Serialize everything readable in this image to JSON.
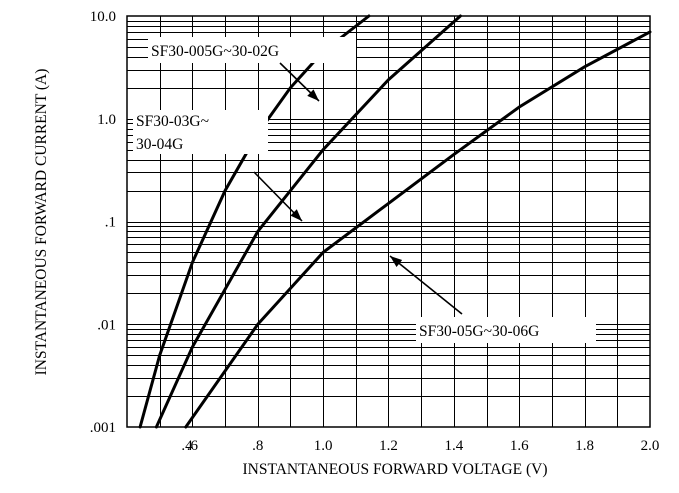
{
  "chart_data": {
    "type": "line",
    "xlabel": "INSTANTANEOUS FORWARD VOLTAGE (V)",
    "ylabel": "INSTANTANEOUS FORWARD CURRENT (A)",
    "xlim": [
      0.4,
      2.0
    ],
    "ylim": [
      0.001,
      10.0
    ],
    "y_scale": "log",
    "grid": true,
    "x_ticks": [
      ".4",
      ".6",
      ".8",
      "1.0",
      "1.2",
      "1.4",
      "1.6",
      "1.8",
      "2.0"
    ],
    "x_tick_values": [
      0.4,
      0.6,
      0.8,
      1.0,
      1.2,
      1.4,
      1.6,
      1.8,
      2.0
    ],
    "y_ticks": [
      ".001",
      ".01",
      ".1",
      "1.0",
      "10.0"
    ],
    "y_tick_values": [
      0.001,
      0.01,
      0.1,
      1.0,
      10.0
    ],
    "series": [
      {
        "name": "SF30-005G~30-02G",
        "x": [
          0.44,
          0.5,
          0.6,
          0.7,
          0.8,
          0.9,
          1.0,
          1.14
        ],
        "y": [
          0.001,
          0.005,
          0.04,
          0.2,
          0.72,
          2.0,
          4.5,
          10.0
        ]
      },
      {
        "name": "SF30-03G~ 30-04G",
        "x": [
          0.49,
          0.6,
          0.8,
          1.0,
          1.2,
          1.42
        ],
        "y": [
          0.001,
          0.006,
          0.08,
          0.5,
          2.4,
          10.0
        ]
      },
      {
        "name": "SF30-05G~30-06G",
        "x": [
          0.58,
          0.8,
          1.0,
          1.2,
          1.4,
          1.6,
          1.8,
          2.0
        ],
        "y": [
          0.001,
          0.01,
          0.05,
          0.15,
          0.45,
          1.3,
          3.2,
          7.0
        ]
      }
    ],
    "annotations": {
      "label_1": "SF30-005G~30-02G",
      "label_2_line1": "SF30-03G~",
      "label_2_line2": "30-04G",
      "label_3": "SF30-05G~30-06G"
    }
  }
}
